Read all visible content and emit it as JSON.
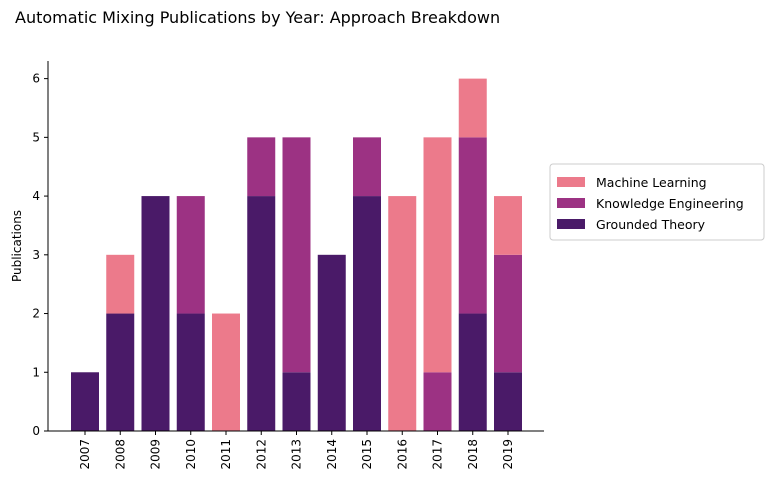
{
  "chart_data": {
    "type": "bar",
    "stacked": true,
    "title": "Automatic Mixing Publications by Year: Approach Breakdown",
    "xlabel": "",
    "ylabel": "Publications",
    "ylim": [
      0,
      6.3
    ],
    "yticks": [
      0,
      1,
      2,
      3,
      4,
      5,
      6
    ],
    "grid": false,
    "legend_position": "right",
    "categories": [
      "2007",
      "2008",
      "2009",
      "2010",
      "2011",
      "2012",
      "2013",
      "2014",
      "2015",
      "2016",
      "2017",
      "2018",
      "2019"
    ],
    "series": [
      {
        "name": "Grounded Theory",
        "color": "#4a1a68",
        "values": [
          1,
          2,
          4,
          2,
          0,
          4,
          1,
          3,
          4,
          0,
          0,
          2,
          1
        ]
      },
      {
        "name": "Knowledge Engineering",
        "color": "#9c3283",
        "values": [
          0,
          0,
          0,
          2,
          0,
          1,
          4,
          0,
          1,
          0,
          1,
          3,
          2
        ]
      },
      {
        "name": "Machine Learning",
        "color": "#ec7a8b",
        "values": [
          0,
          1,
          0,
          0,
          2,
          0,
          0,
          0,
          0,
          4,
          4,
          1,
          1
        ]
      }
    ],
    "legend_order": [
      "Machine Learning",
      "Knowledge Engineering",
      "Grounded Theory"
    ]
  }
}
